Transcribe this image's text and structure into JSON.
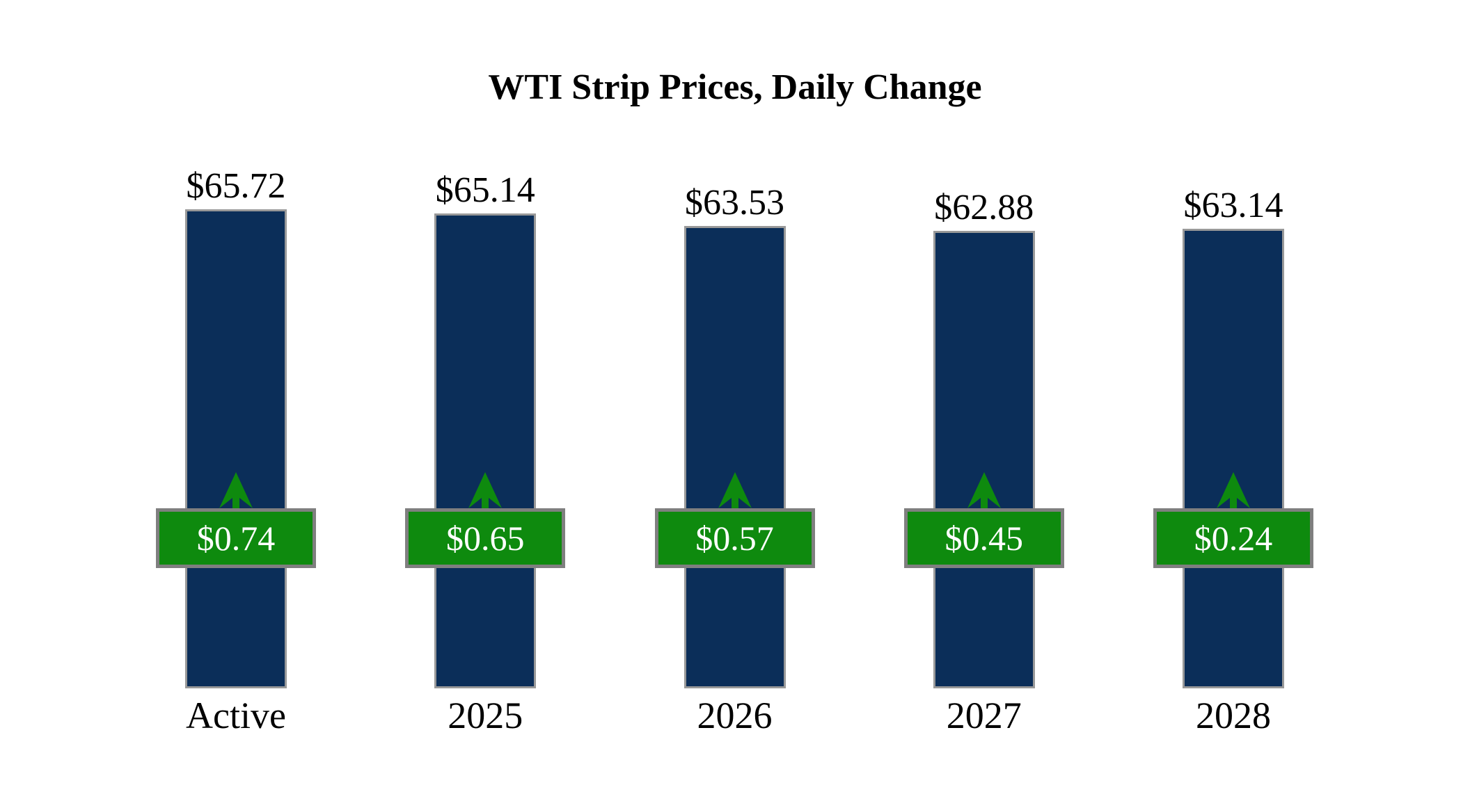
{
  "chart_data": {
    "type": "bar",
    "title": "WTI Strip Prices, Daily Change",
    "categories": [
      "Active",
      "2025",
      "2026",
      "2027",
      "2028"
    ],
    "series": [
      {
        "name": "WTI strip price",
        "values": [
          65.72,
          65.14,
          63.53,
          62.88,
          63.14
        ],
        "labels": [
          "$65.72",
          "$65.14",
          "$63.53",
          "$62.88",
          "$63.14"
        ]
      },
      {
        "name": "Daily change",
        "values": [
          0.74,
          0.65,
          0.57,
          0.45,
          0.24
        ],
        "labels": [
          "$0.74",
          "$0.65",
          "$0.57",
          "$0.45",
          "$0.24"
        ]
      }
    ],
    "ylim": [
      2.5,
      70
    ],
    "grid": false,
    "legend": false,
    "arrow_direction": "up",
    "colors": {
      "background": "#FFFFFF",
      "bar": "#0B2E59",
      "bar_border": "#999999",
      "badge": "#0E8A0E",
      "badge_border": "#7F7F7F",
      "arrow": "#0E8A0E",
      "text": "#000000",
      "badge_text": "#FFFFFF"
    }
  }
}
